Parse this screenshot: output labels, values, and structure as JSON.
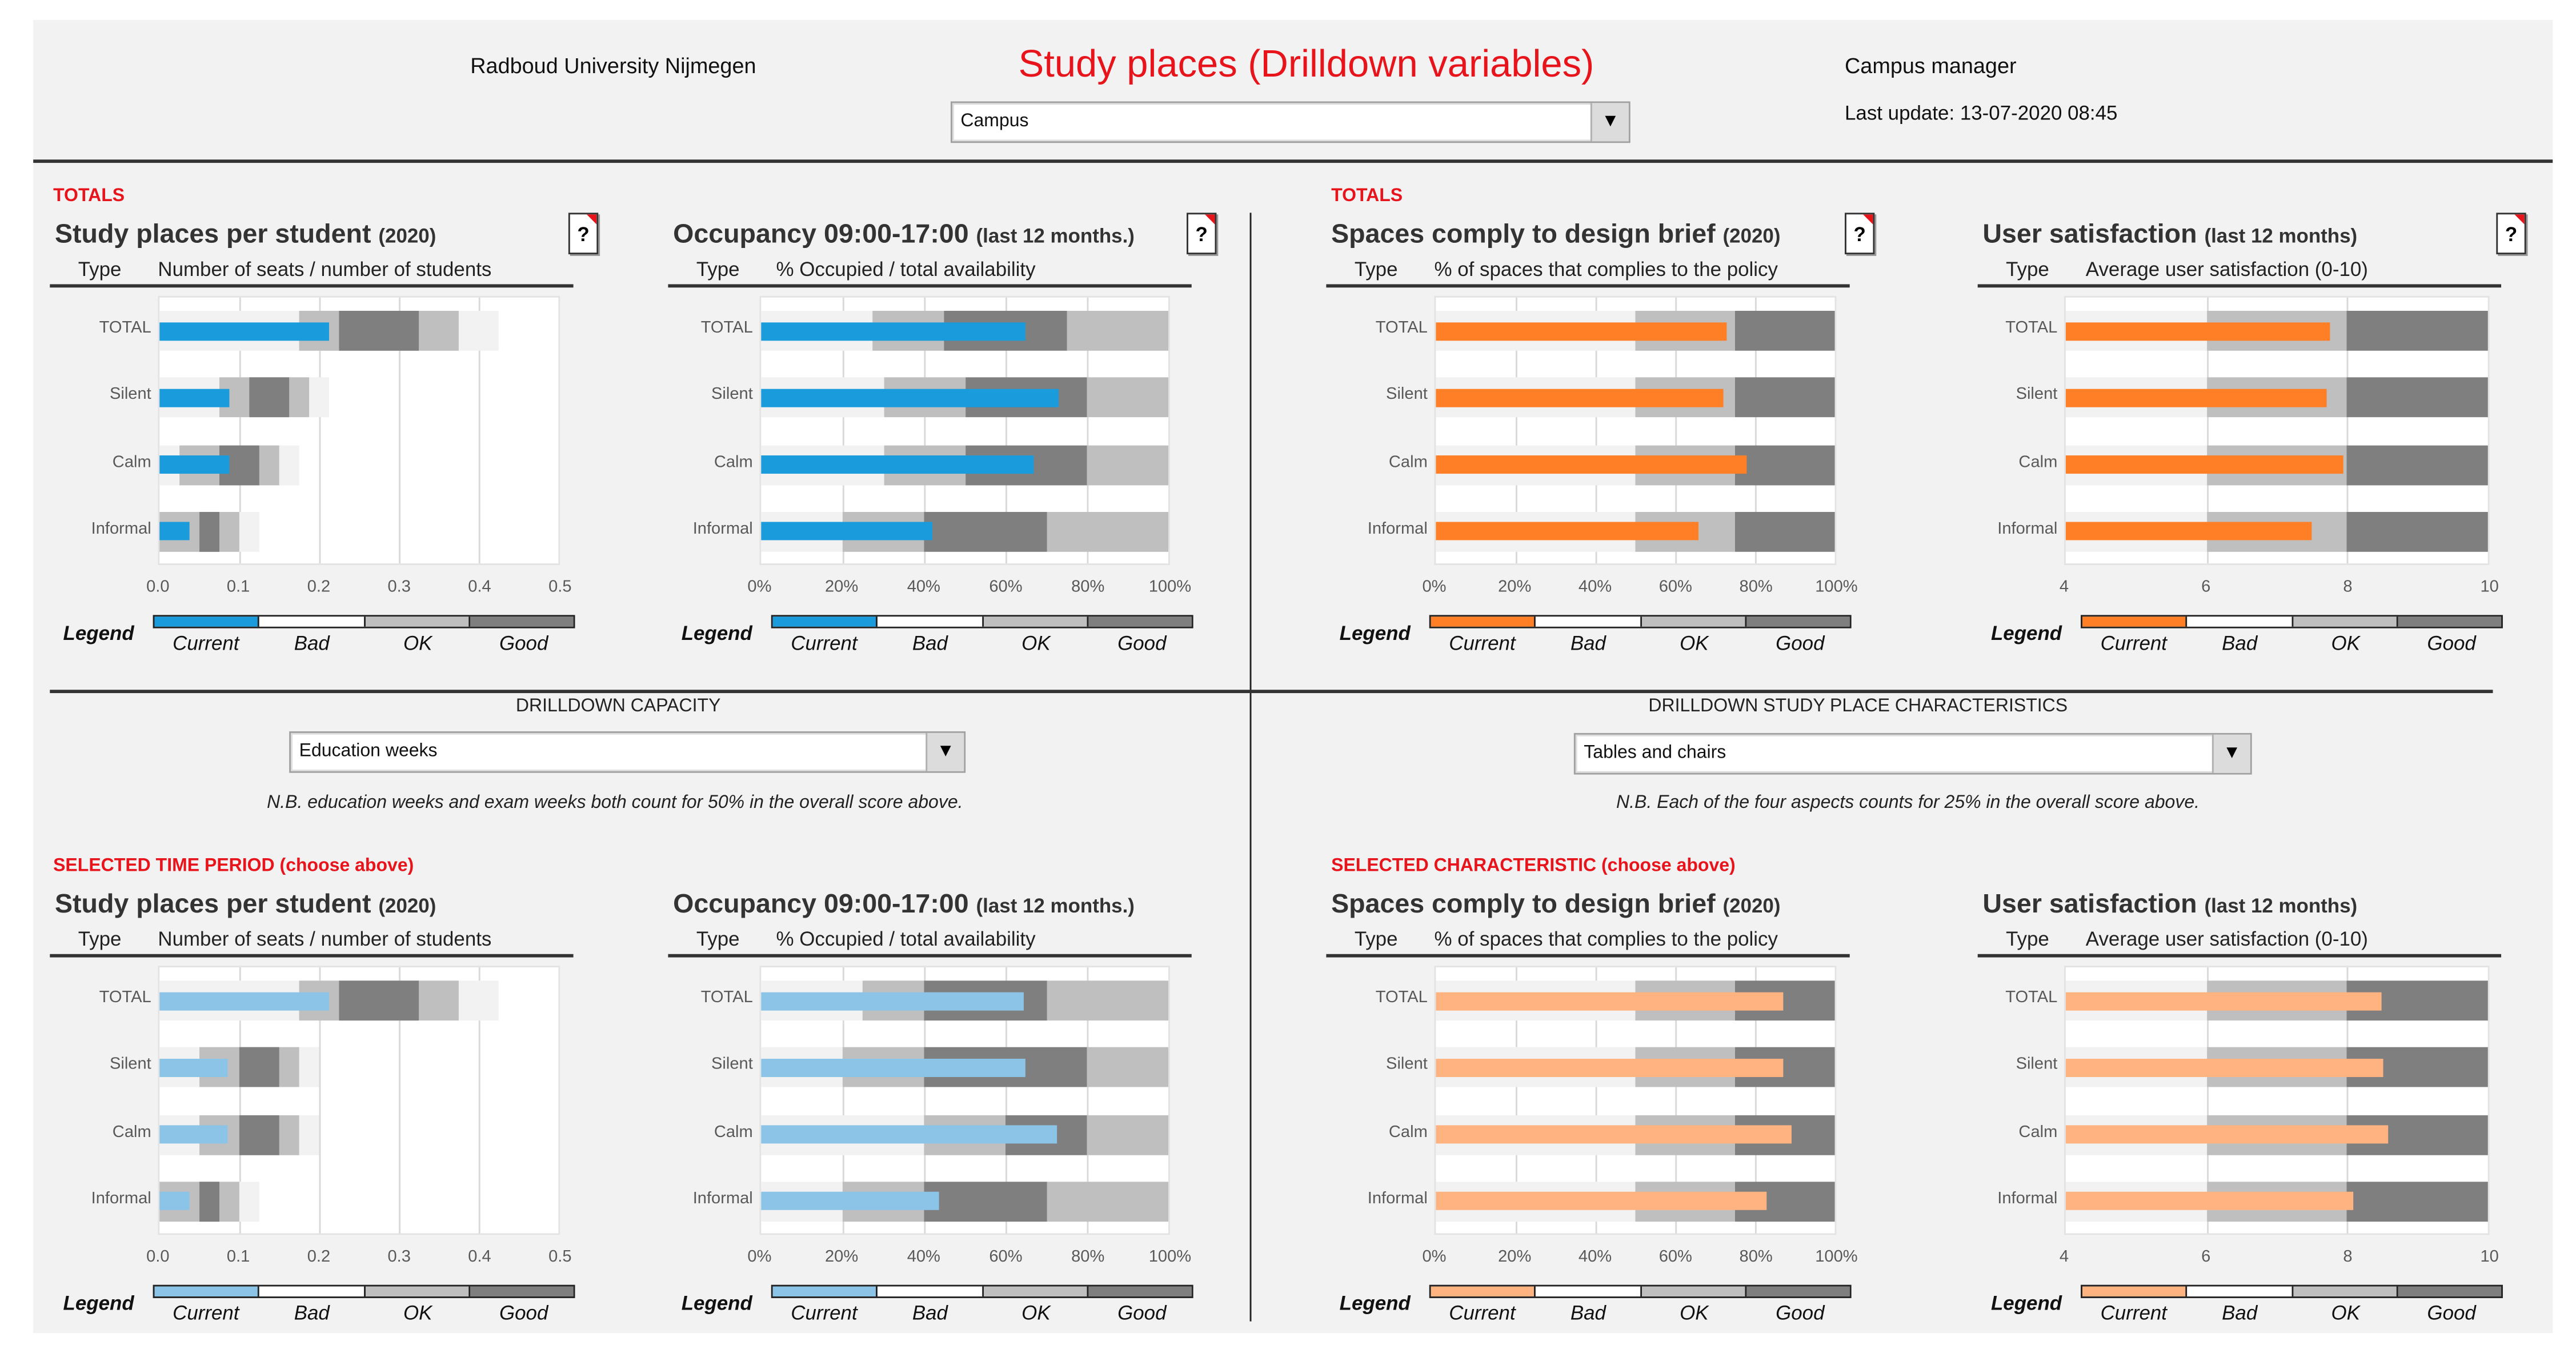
{
  "header": {
    "organization": "Radboud University Nijmegen",
    "title": "Study places (Drilldown variables)",
    "location_select": "Campus",
    "role": "Campus manager",
    "last_update": "Last update: 13-07-2020 08:45"
  },
  "sections": {
    "totals_left": "TOTALS",
    "totals_right": "TOTALS",
    "selected_left": "SELECTED TIME PERIOD (choose above)",
    "selected_right": "SELECTED CHARACTERISTIC (choose above)"
  },
  "drilldown_capacity": {
    "label": "DRILLDOWN CAPACITY",
    "selected": "Education weeks",
    "note": "N.B. education weeks and exam weeks both count for 50% in the overall score above."
  },
  "drilldown_characteristics": {
    "label": "DRILLDOWN STUDY PLACE CHARACTERISTICS",
    "selected": "Tables and chairs",
    "note": "N.B. Each of the four aspects counts for 25% in the overall score above."
  },
  "help_label": "?",
  "type_label": "Type",
  "legend": {
    "title": "Legend",
    "current": "Current",
    "bad": "Bad",
    "ok": "OK",
    "good": "Good"
  },
  "colors": {
    "current_blue": "#1a9bdb",
    "current_blue_light": "#8cc4e8",
    "current_orange": "#ff7f27",
    "current_orange_light": "#ffb380",
    "bad": "#f2f2f2",
    "ok": "#bfbfbf",
    "good": "#7f7f7f",
    "accent_red": "#e8141c"
  },
  "chart_data": [
    {
      "type": "bar",
      "subtype": "bullet",
      "title": "Study places per student",
      "title_suffix": "(2020)",
      "xlabel": "Number of seats / number of students",
      "xlim": [
        0,
        0.5
      ],
      "ticks": [
        0,
        0.1,
        0.2,
        0.3,
        0.4,
        0.5
      ],
      "tick_labels": [
        "0.0",
        "0.1",
        "0.2",
        "0.3",
        "0.4",
        "0.5"
      ],
      "color": "#1a9bdb",
      "rows": [
        {
          "label": "TOTAL",
          "current": 0.213,
          "bad": [
            0,
            0.425
          ],
          "ok": [
            [
              0.175,
              0.375
            ]
          ],
          "good": [
            0.225,
            0.325
          ]
        },
        {
          "label": "Silent",
          "current": 0.087,
          "bad": [
            0,
            0.213
          ],
          "ok": [
            [
              0.075,
              0.187
            ]
          ],
          "good": [
            0.112,
            0.162
          ]
        },
        {
          "label": "Calm",
          "current": 0.087,
          "bad": [
            0,
            0.175
          ],
          "ok": [
            [
              0.025,
              0.15
            ]
          ],
          "good": [
            0.075,
            0.125
          ]
        },
        {
          "label": "Informal",
          "current": 0.038,
          "bad": [
            0,
            0.125
          ],
          "ok": [
            [
              0,
              0.1
            ]
          ],
          "good": [
            0.05,
            0.075
          ]
        }
      ]
    },
    {
      "type": "bar",
      "subtype": "bullet",
      "title": "Occupancy 09:00-17:00",
      "title_suffix": "(last 12 months.)",
      "xlabel": "% Occupied / total availability",
      "xlim": [
        0,
        100
      ],
      "ticks": [
        0,
        20,
        40,
        60,
        80,
        100
      ],
      "tick_labels": [
        "0%",
        "20%",
        "40%",
        "60%",
        "80%",
        "100%"
      ],
      "color": "#1a9bdb",
      "rows": [
        {
          "label": "TOTAL",
          "current": 65,
          "bad": [
            0,
            27.5
          ],
          "ok": [
            [
              27.5,
              45
            ],
            [
              75,
              100
            ]
          ],
          "good": [
            45,
            75
          ]
        },
        {
          "label": "Silent",
          "current": 73,
          "bad": [
            0,
            30
          ],
          "ok": [
            [
              30,
              50
            ],
            [
              80,
              100
            ]
          ],
          "good": [
            50,
            80
          ]
        },
        {
          "label": "Calm",
          "current": 67,
          "bad": [
            0,
            30
          ],
          "ok": [
            [
              30,
              50
            ],
            [
              80,
              100
            ]
          ],
          "good": [
            50,
            80
          ]
        },
        {
          "label": "Informal",
          "current": 42,
          "bad": [
            0,
            20
          ],
          "ok": [
            [
              20,
              40
            ],
            [
              70,
              100
            ]
          ],
          "good": [
            40,
            70
          ]
        }
      ]
    },
    {
      "type": "bar",
      "subtype": "bullet",
      "title": "Spaces comply to design brief",
      "title_suffix": "(2020)",
      "xlabel": "% of spaces that complies to the policy",
      "xlim": [
        0,
        100
      ],
      "ticks": [
        0,
        20,
        40,
        60,
        80,
        100
      ],
      "tick_labels": [
        "0%",
        "20%",
        "40%",
        "60%",
        "80%",
        "100%"
      ],
      "color": "#ff7f27",
      "rows": [
        {
          "label": "TOTAL",
          "current": 73,
          "bad": [
            0,
            50
          ],
          "ok": [
            [
              50,
              75
            ]
          ],
          "good": [
            75,
            100
          ]
        },
        {
          "label": "Silent",
          "current": 72,
          "bad": [
            0,
            50
          ],
          "ok": [
            [
              50,
              75
            ]
          ],
          "good": [
            75,
            100
          ]
        },
        {
          "label": "Calm",
          "current": 78,
          "bad": [
            0,
            50
          ],
          "ok": [
            [
              50,
              75
            ]
          ],
          "good": [
            75,
            100
          ]
        },
        {
          "label": "Informal",
          "current": 66,
          "bad": [
            0,
            50
          ],
          "ok": [
            [
              50,
              75
            ]
          ],
          "good": [
            75,
            100
          ]
        }
      ]
    },
    {
      "type": "bar",
      "subtype": "bullet",
      "title": "User satisfaction",
      "title_suffix": "(last 12 months)",
      "xlabel": "Average user satisfaction (0-10)",
      "xlim": [
        4,
        10
      ],
      "ticks": [
        4,
        6,
        8,
        10
      ],
      "tick_labels": [
        "4",
        "6",
        "8",
        "10"
      ],
      "color": "#ff7f27",
      "rows": [
        {
          "label": "TOTAL",
          "current": 7.75,
          "bad": [
            4,
            6
          ],
          "ok": [
            [
              6,
              8
            ]
          ],
          "good": [
            8,
            10
          ]
        },
        {
          "label": "Silent",
          "current": 7.7,
          "bad": [
            4,
            6
          ],
          "ok": [
            [
              6,
              8
            ]
          ],
          "good": [
            8,
            10
          ]
        },
        {
          "label": "Calm",
          "current": 7.95,
          "bad": [
            4,
            6
          ],
          "ok": [
            [
              6,
              8
            ]
          ],
          "good": [
            8,
            10
          ]
        },
        {
          "label": "Informal",
          "current": 7.5,
          "bad": [
            4,
            6
          ],
          "ok": [
            [
              6,
              8
            ]
          ],
          "good": [
            8,
            10
          ]
        }
      ]
    },
    {
      "type": "bar",
      "subtype": "bullet",
      "title": "Study places per student",
      "title_suffix": "(2020)",
      "xlabel": "Number of seats / number of students",
      "xlim": [
        0,
        0.5
      ],
      "ticks": [
        0,
        0.1,
        0.2,
        0.3,
        0.4,
        0.5
      ],
      "tick_labels": [
        "0.0",
        "0.1",
        "0.2",
        "0.3",
        "0.4",
        "0.5"
      ],
      "color": "#8cc4e8",
      "rows": [
        {
          "label": "TOTAL",
          "current": 0.212,
          "bad": [
            0,
            0.425
          ],
          "ok": [
            [
              0.175,
              0.375
            ]
          ],
          "good": [
            0.225,
            0.325
          ]
        },
        {
          "label": "Silent",
          "current": 0.086,
          "bad": [
            0,
            0.2
          ],
          "ok": [
            [
              0.05,
              0.175
            ]
          ],
          "good": [
            0.1,
            0.15
          ]
        },
        {
          "label": "Calm",
          "current": 0.086,
          "bad": [
            0,
            0.2
          ],
          "ok": [
            [
              0.05,
              0.175
            ]
          ],
          "good": [
            0.1,
            0.15
          ]
        },
        {
          "label": "Informal",
          "current": 0.038,
          "bad": [
            0,
            0.125
          ],
          "ok": [
            [
              0,
              0.1
            ]
          ],
          "good": [
            0.05,
            0.075
          ]
        }
      ]
    },
    {
      "type": "bar",
      "subtype": "bullet",
      "title": "Occupancy 09:00-17:00",
      "title_suffix": "(last 12 months.)",
      "xlabel": "% Occupied / total availability",
      "xlim": [
        0,
        100
      ],
      "ticks": [
        0,
        20,
        40,
        60,
        80,
        100
      ],
      "tick_labels": [
        "0%",
        "20%",
        "40%",
        "60%",
        "80%",
        "100%"
      ],
      "color": "#8cc4e8",
      "rows": [
        {
          "label": "TOTAL",
          "current": 64.5,
          "bad": [
            0,
            25
          ],
          "ok": [
            [
              25,
              40
            ],
            [
              70,
              100
            ]
          ],
          "good": [
            40,
            70
          ]
        },
        {
          "label": "Silent",
          "current": 65,
          "bad": [
            0,
            20
          ],
          "ok": [
            [
              20,
              40
            ],
            [
              80,
              100
            ]
          ],
          "good": [
            40,
            80
          ]
        },
        {
          "label": "Calm",
          "current": 72.8,
          "bad": [
            0,
            40
          ],
          "ok": [
            [
              40,
              60
            ],
            [
              80,
              100
            ]
          ],
          "good": [
            60,
            80
          ]
        },
        {
          "label": "Informal",
          "current": 43.7,
          "bad": [
            0,
            20
          ],
          "ok": [
            [
              20,
              40
            ],
            [
              70,
              100
            ]
          ],
          "good": [
            40,
            70
          ]
        }
      ]
    },
    {
      "type": "bar",
      "subtype": "bullet",
      "title": "Spaces comply to design brief",
      "title_suffix": "(2020)",
      "xlabel": "% of spaces that complies to the policy",
      "xlim": [
        0,
        100
      ],
      "ticks": [
        0,
        20,
        40,
        60,
        80,
        100
      ],
      "tick_labels": [
        "0%",
        "20%",
        "40%",
        "60%",
        "80%",
        "100%"
      ],
      "color": "#ffb380",
      "rows": [
        {
          "label": "TOTAL",
          "current": 87,
          "bad": [
            0,
            50
          ],
          "ok": [
            [
              50,
              75
            ]
          ],
          "good": [
            75,
            100
          ]
        },
        {
          "label": "Silent",
          "current": 87,
          "bad": [
            0,
            50
          ],
          "ok": [
            [
              50,
              75
            ]
          ],
          "good": [
            75,
            100
          ]
        },
        {
          "label": "Calm",
          "current": 89,
          "bad": [
            0,
            50
          ],
          "ok": [
            [
              50,
              75
            ]
          ],
          "good": [
            75,
            100
          ]
        },
        {
          "label": "Informal",
          "current": 83,
          "bad": [
            0,
            50
          ],
          "ok": [
            [
              50,
              75
            ]
          ],
          "good": [
            75,
            100
          ]
        }
      ]
    },
    {
      "type": "bar",
      "subtype": "bullet",
      "title": "User satisfaction",
      "title_suffix": "(last 12 months)",
      "xlabel": "Average user satisfaction (0-10)",
      "xlim": [
        4,
        10
      ],
      "ticks": [
        4,
        6,
        8,
        10
      ],
      "tick_labels": [
        "4",
        "6",
        "8",
        "10"
      ],
      "color": "#ffb380",
      "rows": [
        {
          "label": "TOTAL",
          "current": 8.48,
          "bad": [
            4,
            6
          ],
          "ok": [
            [
              6,
              8
            ]
          ],
          "good": [
            8,
            10
          ]
        },
        {
          "label": "Silent",
          "current": 8.5,
          "bad": [
            4,
            6
          ],
          "ok": [
            [
              6,
              8
            ]
          ],
          "good": [
            8,
            10
          ]
        },
        {
          "label": "Calm",
          "current": 8.58,
          "bad": [
            4,
            6
          ],
          "ok": [
            [
              6,
              8
            ]
          ],
          "good": [
            8,
            10
          ]
        },
        {
          "label": "Informal",
          "current": 8.09,
          "bad": [
            4,
            6
          ],
          "ok": [
            [
              6,
              8
            ]
          ],
          "good": [
            8,
            10
          ]
        }
      ]
    }
  ]
}
